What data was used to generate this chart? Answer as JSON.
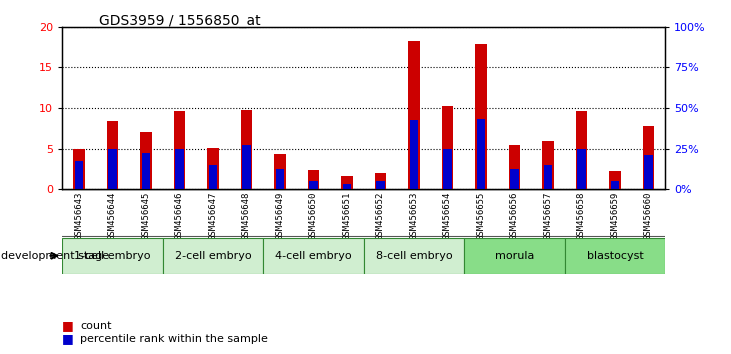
{
  "title": "GDS3959 / 1556850_at",
  "samples": [
    "GSM456643",
    "GSM456644",
    "GSM456645",
    "GSM456646",
    "GSM456647",
    "GSM456648",
    "GSM456649",
    "GSM456650",
    "GSM456651",
    "GSM456652",
    "GSM456653",
    "GSM456654",
    "GSM456655",
    "GSM456656",
    "GSM456657",
    "GSM456658",
    "GSM456659",
    "GSM456660"
  ],
  "count_values": [
    5.0,
    8.4,
    7.1,
    9.6,
    5.1,
    9.7,
    4.4,
    2.4,
    1.6,
    2.0,
    18.2,
    10.2,
    17.8,
    5.5,
    6.0,
    9.6,
    2.2,
    7.8
  ],
  "percentile_values": [
    17.5,
    25.0,
    22.5,
    25.0,
    15.0,
    27.5,
    12.5,
    5.0,
    3.5,
    5.0,
    42.5,
    25.0,
    43.5,
    12.5,
    15.0,
    25.0,
    5.0,
    21.0
  ],
  "stages": [
    {
      "label": "1-cell embryo",
      "start": 0,
      "end": 3
    },
    {
      "label": "2-cell embryo",
      "start": 3,
      "end": 6
    },
    {
      "label": "4-cell embryo",
      "start": 6,
      "end": 9
    },
    {
      "label": "8-cell embryo",
      "start": 9,
      "end": 12
    },
    {
      "label": "morula",
      "start": 12,
      "end": 15
    },
    {
      "label": "blastocyst",
      "start": 15,
      "end": 18
    }
  ],
  "bar_color": "#cc0000",
  "percentile_color": "#0000cc",
  "grid_color": "#000000",
  "ylim_left": [
    0,
    20
  ],
  "ylim_right": [
    0,
    100
  ],
  "yticks_left": [
    0,
    5,
    10,
    15,
    20
  ],
  "yticks_right": [
    0,
    25,
    50,
    75,
    100
  ],
  "ytick_labels_right": [
    "0%",
    "25%",
    "50%",
    "75%",
    "100%"
  ],
  "bar_width": 0.35,
  "percentile_bar_width": 0.25
}
